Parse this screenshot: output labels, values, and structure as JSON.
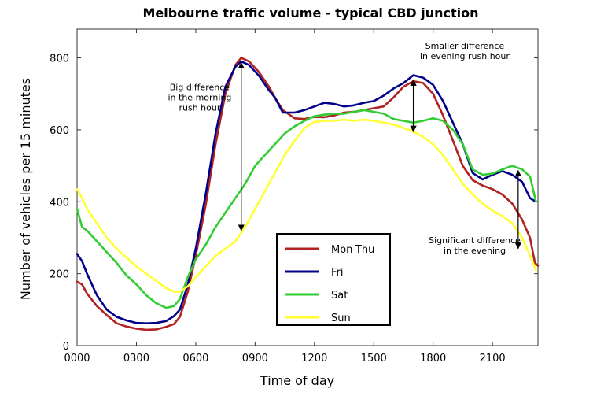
{
  "chart_data": {
    "type": "line",
    "title": "Melbourne traffic volume - typical CBD junction",
    "xlabel": "Time of day",
    "ylabel": "Number of vehicles per 15 minutes",
    "xlim": [
      0,
      2330
    ],
    "ylim": [
      0,
      880
    ],
    "x_ticks": [
      0,
      300,
      600,
      900,
      1200,
      1500,
      1800,
      2100
    ],
    "x_tick_labels": [
      "0000",
      "0300",
      "0600",
      "0900",
      "1200",
      "1500",
      "1800",
      "2100"
    ],
    "y_ticks": [
      0,
      200,
      400,
      600,
      800
    ],
    "y_tick_labels": [
      "0",
      "200",
      "400",
      "600",
      "800"
    ],
    "grid": false,
    "legend_position": "center-bottom",
    "series": [
      {
        "name": "Mon-Thu",
        "color": "#b22222",
        "points": [
          [
            0,
            178
          ],
          [
            25,
            170
          ],
          [
            50,
            145
          ],
          [
            100,
            110
          ],
          [
            150,
            85
          ],
          [
            200,
            62
          ],
          [
            250,
            53
          ],
          [
            300,
            47
          ],
          [
            350,
            44
          ],
          [
            400,
            45
          ],
          [
            450,
            52
          ],
          [
            490,
            60
          ],
          [
            520,
            80
          ],
          [
            560,
            150
          ],
          [
            600,
            250
          ],
          [
            650,
            390
          ],
          [
            700,
            560
          ],
          [
            750,
            700
          ],
          [
            800,
            780
          ],
          [
            830,
            800
          ],
          [
            870,
            790
          ],
          [
            920,
            760
          ],
          [
            970,
            720
          ],
          [
            1000,
            690
          ],
          [
            1040,
            655
          ],
          [
            1100,
            632
          ],
          [
            1150,
            630
          ],
          [
            1200,
            636
          ],
          [
            1250,
            635
          ],
          [
            1300,
            640
          ],
          [
            1350,
            648
          ],
          [
            1400,
            650
          ],
          [
            1450,
            655
          ],
          [
            1500,
            660
          ],
          [
            1550,
            665
          ],
          [
            1600,
            690
          ],
          [
            1650,
            720
          ],
          [
            1700,
            735
          ],
          [
            1750,
            730
          ],
          [
            1800,
            700
          ],
          [
            1850,
            640
          ],
          [
            1900,
            570
          ],
          [
            1950,
            500
          ],
          [
            2000,
            460
          ],
          [
            2050,
            445
          ],
          [
            2100,
            435
          ],
          [
            2150,
            420
          ],
          [
            2200,
            395
          ],
          [
            2250,
            350
          ],
          [
            2290,
            300
          ],
          [
            2315,
            230
          ],
          [
            2330,
            222
          ]
        ]
      },
      {
        "name": "Fri",
        "color": "#00008b",
        "points": [
          [
            0,
            255
          ],
          [
            25,
            235
          ],
          [
            50,
            200
          ],
          [
            100,
            140
          ],
          [
            150,
            100
          ],
          [
            200,
            80
          ],
          [
            250,
            70
          ],
          [
            300,
            63
          ],
          [
            350,
            62
          ],
          [
            400,
            63
          ],
          [
            450,
            68
          ],
          [
            490,
            82
          ],
          [
            520,
            100
          ],
          [
            560,
            170
          ],
          [
            600,
            270
          ],
          [
            650,
            420
          ],
          [
            700,
            590
          ],
          [
            750,
            720
          ],
          [
            800,
            775
          ],
          [
            830,
            790
          ],
          [
            870,
            780
          ],
          [
            920,
            750
          ],
          [
            970,
            710
          ],
          [
            1000,
            690
          ],
          [
            1040,
            648
          ],
          [
            1100,
            648
          ],
          [
            1150,
            655
          ],
          [
            1200,
            665
          ],
          [
            1250,
            675
          ],
          [
            1300,
            672
          ],
          [
            1350,
            665
          ],
          [
            1400,
            668
          ],
          [
            1450,
            675
          ],
          [
            1500,
            680
          ],
          [
            1550,
            695
          ],
          [
            1600,
            715
          ],
          [
            1650,
            730
          ],
          [
            1700,
            752
          ],
          [
            1750,
            745
          ],
          [
            1800,
            725
          ],
          [
            1850,
            680
          ],
          [
            1900,
            620
          ],
          [
            1950,
            560
          ],
          [
            2000,
            480
          ],
          [
            2050,
            462
          ],
          [
            2100,
            475
          ],
          [
            2150,
            485
          ],
          [
            2200,
            475
          ],
          [
            2250,
            455
          ],
          [
            2290,
            410
          ],
          [
            2320,
            400
          ]
        ]
      },
      {
        "name": "Sat",
        "color": "#32cd32",
        "points": [
          [
            0,
            380
          ],
          [
            25,
            330
          ],
          [
            50,
            320
          ],
          [
            100,
            290
          ],
          [
            150,
            260
          ],
          [
            200,
            230
          ],
          [
            250,
            195
          ],
          [
            300,
            170
          ],
          [
            350,
            140
          ],
          [
            400,
            118
          ],
          [
            450,
            105
          ],
          [
            490,
            110
          ],
          [
            520,
            130
          ],
          [
            560,
            190
          ],
          [
            600,
            240
          ],
          [
            650,
            280
          ],
          [
            700,
            330
          ],
          [
            750,
            370
          ],
          [
            800,
            410
          ],
          [
            850,
            450
          ],
          [
            900,
            500
          ],
          [
            950,
            530
          ],
          [
            1000,
            560
          ],
          [
            1050,
            590
          ],
          [
            1100,
            610
          ],
          [
            1150,
            625
          ],
          [
            1200,
            638
          ],
          [
            1250,
            642
          ],
          [
            1300,
            645
          ],
          [
            1350,
            645
          ],
          [
            1400,
            650
          ],
          [
            1450,
            655
          ],
          [
            1500,
            650
          ],
          [
            1550,
            645
          ],
          [
            1600,
            630
          ],
          [
            1650,
            625
          ],
          [
            1700,
            620
          ],
          [
            1750,
            625
          ],
          [
            1800,
            632
          ],
          [
            1850,
            625
          ],
          [
            1900,
            600
          ],
          [
            1950,
            560
          ],
          [
            2000,
            490
          ],
          [
            2050,
            475
          ],
          [
            2100,
            478
          ],
          [
            2150,
            490
          ],
          [
            2200,
            500
          ],
          [
            2250,
            490
          ],
          [
            2290,
            470
          ],
          [
            2320,
            400
          ]
        ]
      },
      {
        "name": "Sun",
        "color": "#ffff33",
        "points": [
          [
            0,
            435
          ],
          [
            25,
            410
          ],
          [
            50,
            380
          ],
          [
            100,
            340
          ],
          [
            150,
            300
          ],
          [
            200,
            270
          ],
          [
            250,
            245
          ],
          [
            300,
            220
          ],
          [
            350,
            200
          ],
          [
            400,
            180
          ],
          [
            450,
            160
          ],
          [
            490,
            150
          ],
          [
            520,
            150
          ],
          [
            560,
            165
          ],
          [
            600,
            190
          ],
          [
            650,
            220
          ],
          [
            700,
            250
          ],
          [
            750,
            270
          ],
          [
            800,
            290
          ],
          [
            850,
            330
          ],
          [
            900,
            380
          ],
          [
            950,
            430
          ],
          [
            1000,
            480
          ],
          [
            1050,
            530
          ],
          [
            1100,
            570
          ],
          [
            1150,
            605
          ],
          [
            1200,
            622
          ],
          [
            1250,
            625
          ],
          [
            1300,
            625
          ],
          [
            1350,
            628
          ],
          [
            1400,
            625
          ],
          [
            1450,
            628
          ],
          [
            1500,
            625
          ],
          [
            1550,
            620
          ],
          [
            1600,
            615
          ],
          [
            1650,
            605
          ],
          [
            1700,
            595
          ],
          [
            1750,
            580
          ],
          [
            1800,
            560
          ],
          [
            1850,
            530
          ],
          [
            1900,
            490
          ],
          [
            1950,
            450
          ],
          [
            2000,
            420
          ],
          [
            2050,
            395
          ],
          [
            2100,
            375
          ],
          [
            2150,
            360
          ],
          [
            2200,
            340
          ],
          [
            2250,
            300
          ],
          [
            2290,
            250
          ],
          [
            2320,
            210
          ]
        ]
      }
    ],
    "annotations": [
      {
        "text_lines": [
          "Big difference",
          "in the morning",
          "rush hour"
        ],
        "text_at": [
          620,
          710
        ],
        "arrow_from": [
          830,
          800
        ],
        "arrow_to": [
          830,
          320
        ]
      },
      {
        "text_lines": [
          "Smaller difference",
          "in evening rush hour"
        ],
        "text_at": [
          1960,
          825
        ],
        "arrow_from": [
          1700,
          752
        ],
        "arrow_to": [
          1700,
          595
        ]
      },
      {
        "text_lines": [
          "Significant difference",
          "in the evening"
        ],
        "text_at": [
          2010,
          285
        ],
        "arrow_from": [
          2230,
          500
        ],
        "arrow_to": [
          2230,
          270
        ]
      }
    ]
  }
}
